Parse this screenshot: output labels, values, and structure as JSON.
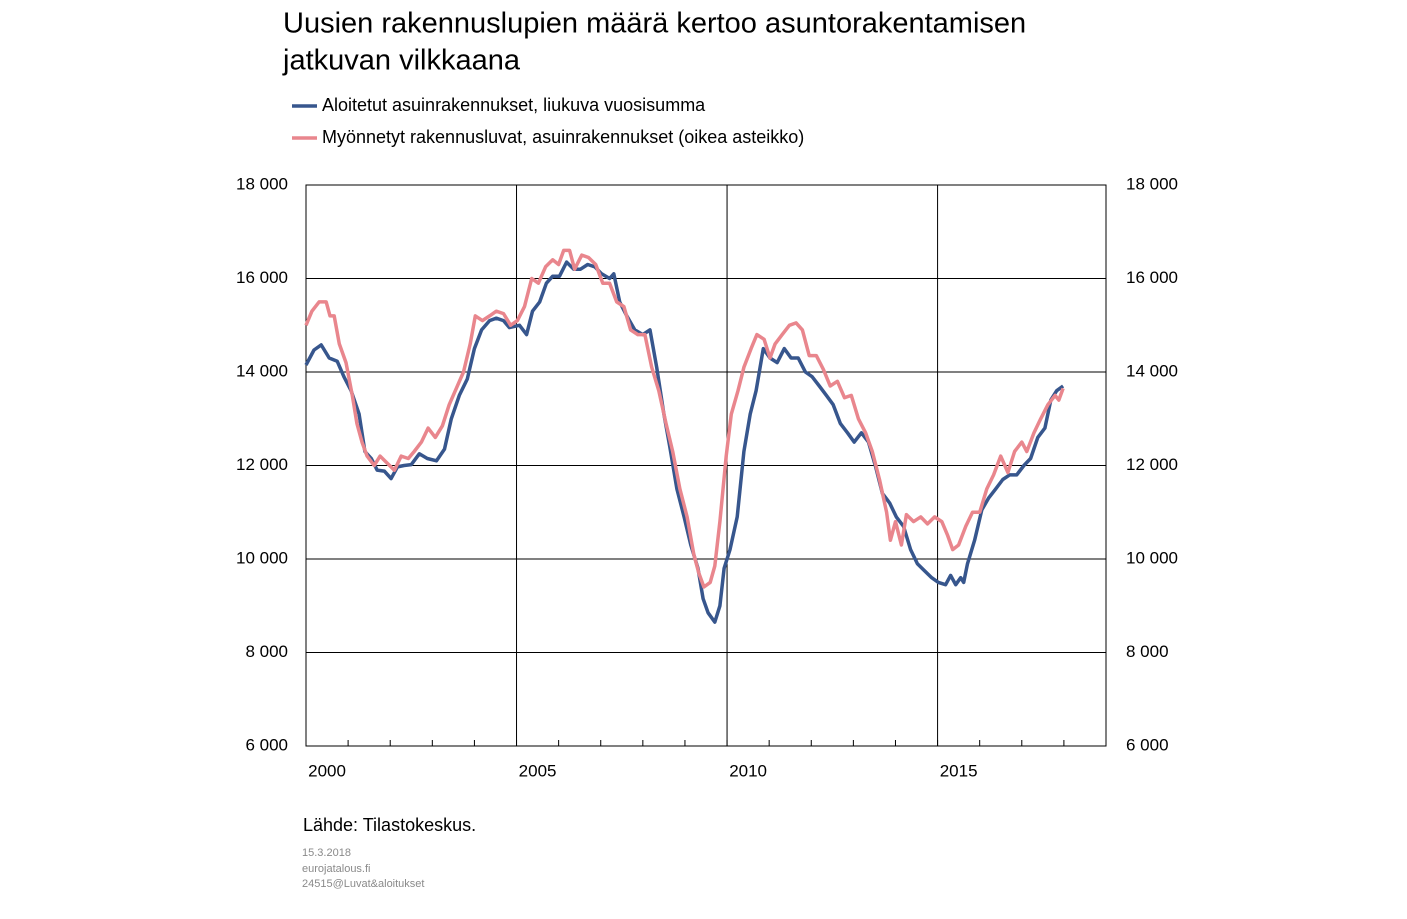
{
  "chart_data": {
    "type": "line",
    "title": [
      "Uusien rakennuslupien määrä kertoo asuntorakentamisen",
      "jatkuvan vilkkaana"
    ],
    "source": "Lähde: Tilastokeskus.",
    "notes": [
      "15.3.2018",
      "eurojatalous.fi",
      "24515@Luvat&aloitukset"
    ],
    "xlim": [
      2000,
      2019
    ],
    "xticks": [
      {
        "value": 2000.5,
        "label": "2000"
      },
      {
        "value": 2005.5,
        "label": "2005"
      },
      {
        "value": 2010.5,
        "label": "2010"
      },
      {
        "value": 2015.5,
        "label": "2015"
      }
    ],
    "xgrid": [
      2005,
      2010,
      2015
    ],
    "ylim": [
      6000,
      18000
    ],
    "yticks": [
      {
        "value": 6000,
        "label": "6 000"
      },
      {
        "value": 8000,
        "label": "8 000"
      },
      {
        "value": 10000,
        "label": "10 000"
      },
      {
        "value": 12000,
        "label": "12 000"
      },
      {
        "value": 14000,
        "label": "14 000"
      },
      {
        "value": 16000,
        "label": "16 000"
      },
      {
        "value": 18000,
        "label": "18 000"
      }
    ],
    "y2lim": [
      6000,
      18000
    ],
    "y2ticks": [
      {
        "value": 6000,
        "label": "6 000"
      },
      {
        "value": 8000,
        "label": "8 000"
      },
      {
        "value": 10000,
        "label": "10 000"
      },
      {
        "value": 12000,
        "label": "12 000"
      },
      {
        "value": 14000,
        "label": "14 000"
      },
      {
        "value": 16000,
        "label": "16 000"
      },
      {
        "value": 18000,
        "label": "18 000"
      }
    ],
    "grid": true,
    "series": [
      {
        "name": "Aloitetut asuinrakennukset, liukuva vuosisumma",
        "color": "#37568d",
        "x": [
          2000.0,
          2000.19,
          2000.36,
          2000.55,
          2000.74,
          2000.9,
          2001.07,
          2001.26,
          2001.4,
          2001.55,
          2001.69,
          2001.86,
          2002.02,
          2002.17,
          2002.33,
          2002.5,
          2002.69,
          2002.88,
          2003.1,
          2003.29,
          2003.45,
          2003.64,
          2003.83,
          2004.0,
          2004.17,
          2004.36,
          2004.52,
          2004.69,
          2004.83,
          2005.07,
          2005.24,
          2005.38,
          2005.55,
          2005.71,
          2005.86,
          2006.02,
          2006.19,
          2006.36,
          2006.52,
          2006.69,
          2006.86,
          2007.02,
          2007.21,
          2007.31,
          2007.45,
          2007.62,
          2007.81,
          2008.0,
          2008.17,
          2008.33,
          2008.5,
          2008.64,
          2008.81,
          2008.98,
          2009.14,
          2009.31,
          2009.43,
          2009.55,
          2009.71,
          2009.83,
          2009.93,
          2010.07,
          2010.24,
          2010.4,
          2010.55,
          2010.69,
          2010.86,
          2011.02,
          2011.19,
          2011.36,
          2011.52,
          2011.69,
          2011.86,
          2012.02,
          2012.19,
          2012.36,
          2012.52,
          2012.69,
          2012.86,
          2013.02,
          2013.19,
          2013.36,
          2013.52,
          2013.69,
          2013.86,
          2014.02,
          2014.19,
          2014.36,
          2014.52,
          2014.69,
          2014.86,
          2015.02,
          2015.19,
          2015.31,
          2015.43,
          2015.55,
          2015.62,
          2015.71,
          2015.88,
          2016.05,
          2016.21,
          2016.38,
          2016.55,
          2016.71,
          2016.88,
          2017.05,
          2017.21,
          2017.38,
          2017.55,
          2017.69,
          2017.83,
          2017.98
        ],
        "values": [
          14150,
          14470,
          14580,
          14300,
          14230,
          13900,
          13600,
          13100,
          12300,
          12150,
          11900,
          11880,
          11720,
          11970,
          12000,
          12020,
          12250,
          12150,
          12100,
          12350,
          13000,
          13500,
          13850,
          14500,
          14900,
          15100,
          15150,
          15100,
          14950,
          15000,
          14800,
          15300,
          15500,
          15900,
          16050,
          16050,
          16350,
          16200,
          16200,
          16300,
          16250,
          16100,
          16000,
          16100,
          15500,
          15200,
          14900,
          14800,
          14900,
          14100,
          13100,
          12400,
          11500,
          10900,
          10300,
          9800,
          9150,
          8850,
          8650,
          9000,
          9800,
          10200,
          10900,
          12300,
          13100,
          13600,
          14500,
          14300,
          14200,
          14500,
          14300,
          14300,
          14000,
          13900,
          13700,
          13500,
          13300,
          12900,
          12700,
          12500,
          12700,
          12500,
          12000,
          11400,
          11200,
          10900,
          10700,
          10200,
          9900,
          9750,
          9600,
          9500,
          9450,
          9650,
          9450,
          9600,
          9500,
          9900,
          10400,
          11050,
          11300,
          11500,
          11700,
          11800,
          11800,
          12000,
          12150,
          12600,
          12800,
          13400,
          13600,
          13700
        ]
      },
      {
        "name": "Myönnetyt rakennusluvat, asuinrakennukset (oikea asteikko)",
        "color": "#e9868d",
        "axis": "y2",
        "x": [
          2000.0,
          2000.14,
          2000.31,
          2000.48,
          2000.57,
          2000.67,
          2000.79,
          2000.95,
          2001.1,
          2001.21,
          2001.33,
          2001.45,
          2001.62,
          2001.76,
          2001.93,
          2002.1,
          2002.26,
          2002.43,
          2002.57,
          2002.74,
          2002.9,
          2003.07,
          2003.24,
          2003.4,
          2003.57,
          2003.74,
          2003.9,
          2004.02,
          2004.19,
          2004.36,
          2004.52,
          2004.69,
          2004.86,
          2005.02,
          2005.19,
          2005.36,
          2005.52,
          2005.69,
          2005.86,
          2006.0,
          2006.12,
          2006.26,
          2006.38,
          2006.55,
          2006.71,
          2006.88,
          2007.05,
          2007.21,
          2007.38,
          2007.55,
          2007.71,
          2007.88,
          2008.05,
          2008.21,
          2008.38,
          2008.55,
          2008.71,
          2008.88,
          2009.05,
          2009.21,
          2009.33,
          2009.45,
          2009.6,
          2009.71,
          2009.83,
          2009.98,
          2010.1,
          2010.26,
          2010.4,
          2010.57,
          2010.71,
          2010.88,
          2011.02,
          2011.14,
          2011.31,
          2011.48,
          2011.64,
          2011.79,
          2011.95,
          2012.12,
          2012.29,
          2012.45,
          2012.62,
          2012.79,
          2012.95,
          2013.12,
          2013.29,
          2013.45,
          2013.62,
          2013.79,
          2013.88,
          2014.0,
          2014.14,
          2014.26,
          2014.43,
          2014.6,
          2014.76,
          2014.93,
          2015.1,
          2015.24,
          2015.36,
          2015.5,
          2015.67,
          2015.83,
          2016.0,
          2016.17,
          2016.33,
          2016.5,
          2016.67,
          2016.83,
          2017.0,
          2017.12,
          2017.29,
          2017.45,
          2017.62,
          2017.79,
          2017.88,
          2017.98
        ],
        "values": [
          15000,
          15300,
          15500,
          15500,
          15200,
          15200,
          14600,
          14200,
          13500,
          12900,
          12500,
          12200,
          12000,
          12200,
          12050,
          11900,
          12200,
          12150,
          12300,
          12500,
          12800,
          12600,
          12850,
          13300,
          13650,
          14000,
          14600,
          15200,
          15100,
          15200,
          15300,
          15250,
          15000,
          15100,
          15400,
          16000,
          15900,
          16250,
          16400,
          16300,
          16600,
          16600,
          16200,
          16500,
          16450,
          16300,
          15900,
          15900,
          15500,
          15400,
          14900,
          14800,
          14800,
          14100,
          13600,
          12900,
          12300,
          11500,
          10900,
          10100,
          9700,
          9400,
          9500,
          9850,
          10800,
          12200,
          13100,
          13600,
          14100,
          14500,
          14800,
          14700,
          14300,
          14600,
          14800,
          15000,
          15050,
          14900,
          14350,
          14350,
          14050,
          13700,
          13800,
          13450,
          13500,
          13000,
          12700,
          12300,
          11700,
          11000,
          10400,
          10800,
          10300,
          10950,
          10800,
          10900,
          10750,
          10900,
          10800,
          10500,
          10200,
          10300,
          10700,
          11000,
          11000,
          11500,
          11800,
          12200,
          11850,
          12300,
          12500,
          12300,
          12700,
          13000,
          13300,
          13500,
          13400,
          13650
        ]
      }
    ]
  }
}
